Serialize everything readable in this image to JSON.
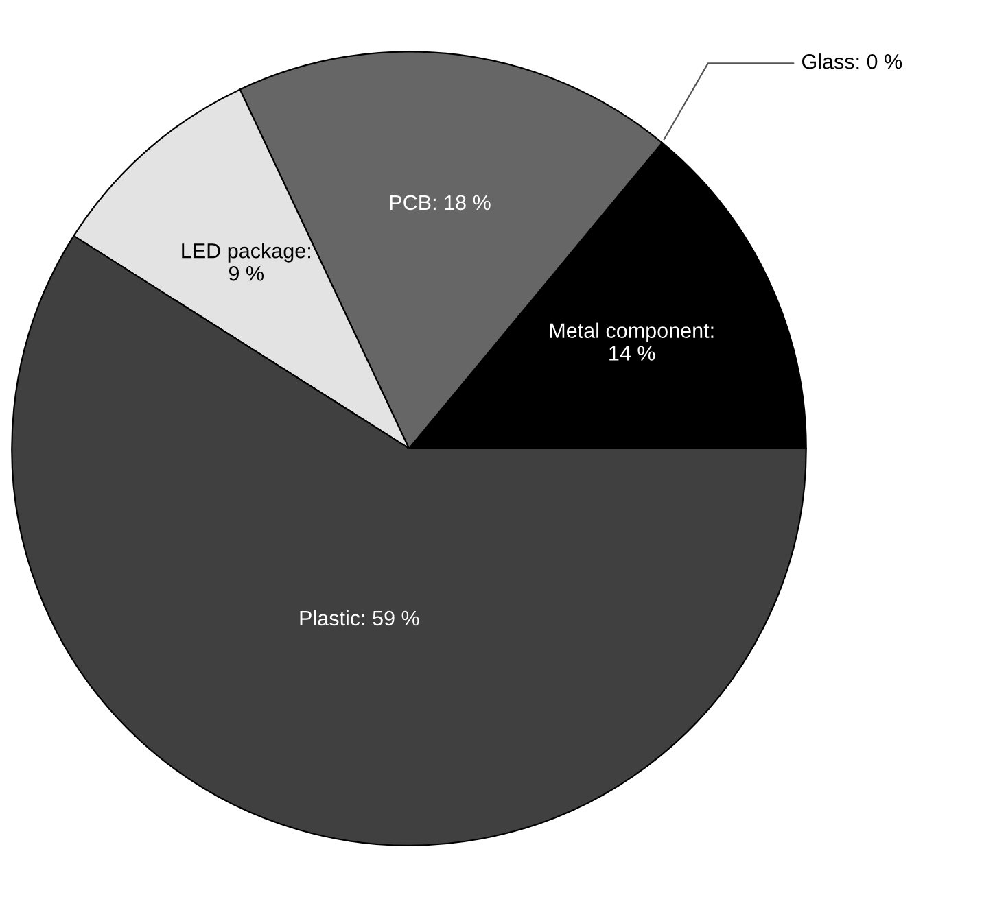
{
  "chart_data": {
    "type": "pie",
    "categories": [
      "Metal component:\n14 %",
      "Glass: 0 %",
      "PCB: 18 %",
      "LED package:\n9 %",
      "Plastic: 59 %"
    ],
    "values": [
      14,
      0,
      18,
      9,
      59
    ],
    "colors": [
      "#000000",
      "#ffffff",
      "#666666",
      "#e3e3e3",
      "#404040"
    ]
  }
}
